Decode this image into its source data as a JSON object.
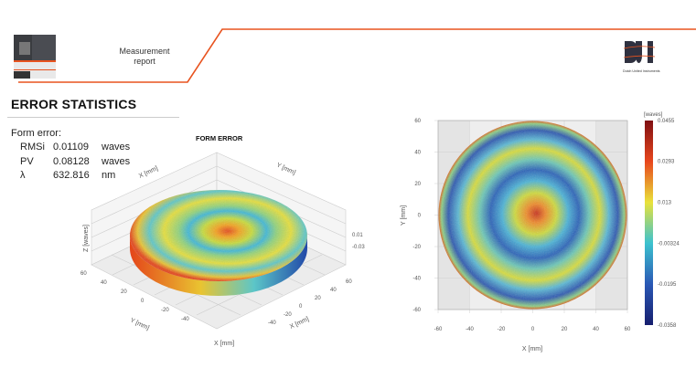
{
  "header": {
    "report_title_line1": "Measurement",
    "report_title_line2": "report",
    "logo_text": "DUI",
    "logo_subtitle": "Dutch United Instruments",
    "accent_color": "#e8531f"
  },
  "section": {
    "title": "ERROR STATISTICS"
  },
  "form_error": {
    "label": "Form error:",
    "rows": [
      {
        "name": "RMSi",
        "value": "0.01109",
        "unit": "waves"
      },
      {
        "name": "PV",
        "value": "0.08128",
        "unit": "waves"
      },
      {
        "name": "λ",
        "value": "632.816",
        "unit": "nm"
      }
    ]
  },
  "chart_data": [
    {
      "type": "surface3d",
      "title": "FORM ERROR",
      "xlabel": "X [mm]",
      "ylabel": "Y [mm]",
      "zlabel": "Z [waves]",
      "x_ticks": [
        "-40",
        "-20",
        "0",
        "20",
        "40",
        "60"
      ],
      "y_ticks": [
        "60",
        "40",
        "20",
        "0",
        "-20",
        "-40"
      ],
      "z_ticks": [
        "0.01",
        "-0.03"
      ],
      "colormap": "jet"
    },
    {
      "type": "heatmap",
      "xlabel": "X [mm]",
      "ylabel": "Y [mm]",
      "xlim": [
        -60,
        60
      ],
      "ylim": [
        -60,
        60
      ],
      "x_ticks": [
        -60,
        -40,
        -20,
        0,
        20,
        40,
        60
      ],
      "y_ticks": [
        60,
        40,
        20,
        0,
        -20,
        -40,
        -60
      ],
      "colorbar": {
        "label": "[waves]",
        "range": [
          -0.0358,
          0.0455
        ],
        "ticks": [
          "0.0455",
          "0.0293",
          "0.013",
          "-0.00324",
          "-0.0195",
          "-0.0358"
        ]
      },
      "colormap": "jet"
    }
  ]
}
